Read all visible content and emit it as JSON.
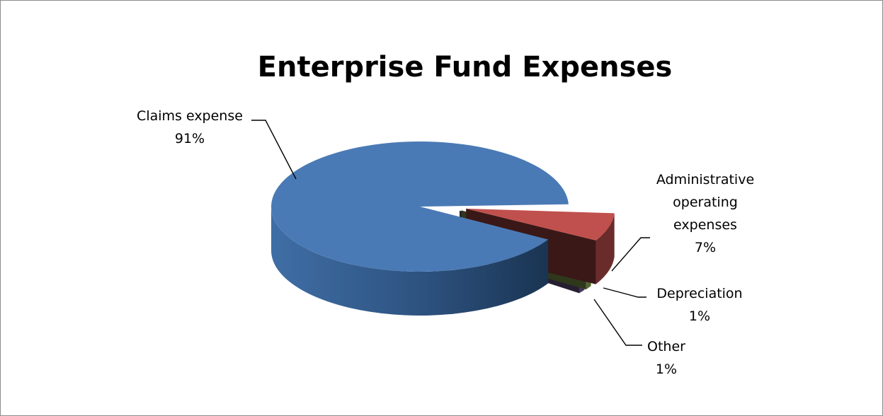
{
  "chart_data": {
    "type": "pie",
    "title": "Enterprise Fund Expenses",
    "style": "3d-exploded",
    "slices": [
      {
        "name": "Claims expense",
        "percent_label": "91%",
        "value": 91,
        "color": "#4a7ab5"
      },
      {
        "name": "Administrative operating expenses",
        "percent_label": "7%",
        "value": 7,
        "color": "#c0504d"
      },
      {
        "name": "Depreciation",
        "percent_label": "1%",
        "value": 1,
        "color": "#9bbb59"
      },
      {
        "name": "Other",
        "percent_label": "1%",
        "value": 1,
        "color": "#8064a2"
      }
    ]
  }
}
